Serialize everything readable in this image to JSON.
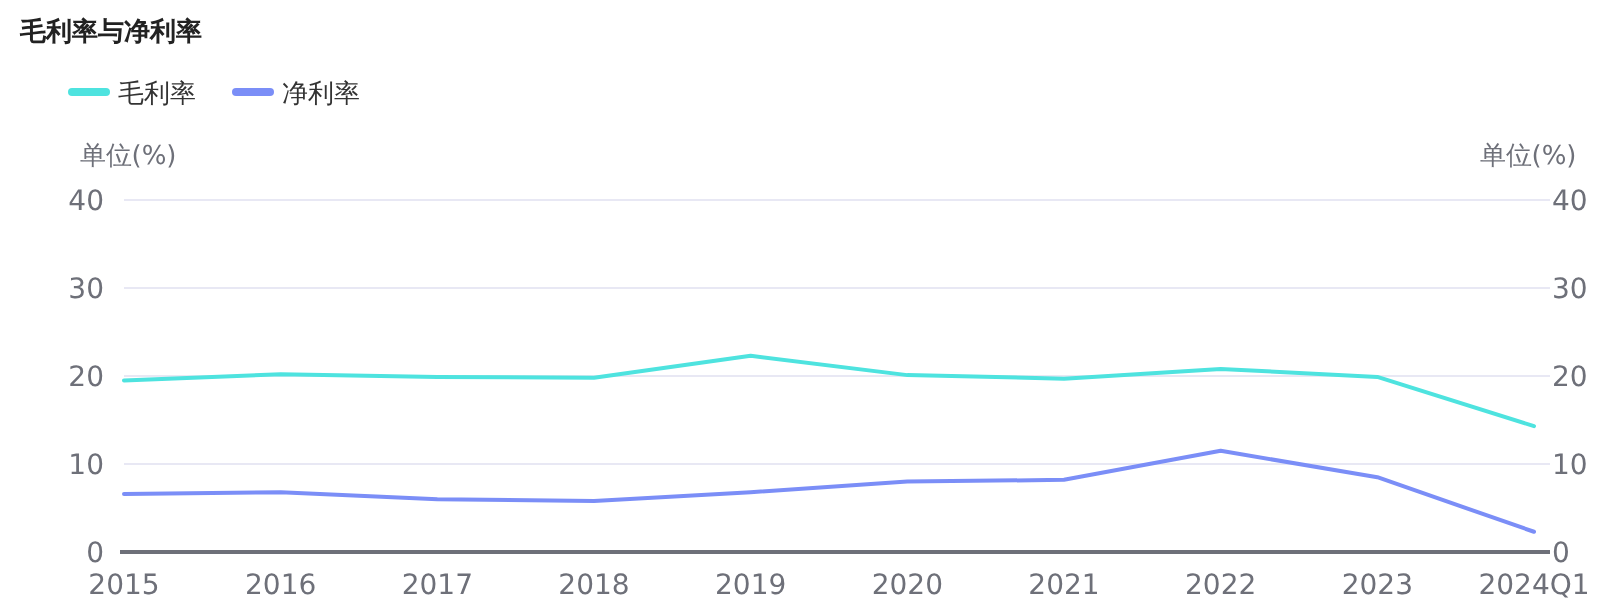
{
  "chart_data": {
    "type": "line",
    "title": "毛利率与净利率",
    "ylabel": "单位(%)",
    "y2label": "单位(%)",
    "categories": [
      "2015",
      "2016",
      "2017",
      "2018",
      "2019",
      "2020",
      "2021",
      "2022",
      "2023",
      "2024Q1"
    ],
    "series": [
      {
        "name": "毛利率",
        "color": "#4ee3df",
        "values": [
          19.5,
          20.2,
          19.9,
          19.8,
          22.3,
          20.1,
          19.7,
          20.8,
          19.9,
          14.3
        ]
      },
      {
        "name": "净利率",
        "color": "#7b8ef7",
        "values": [
          6.6,
          6.8,
          6.0,
          5.8,
          6.8,
          8.0,
          8.2,
          11.5,
          8.5,
          2.3
        ]
      }
    ],
    "ylim": [
      0,
      40
    ],
    "yticks": [
      0,
      10,
      20,
      30,
      40
    ],
    "y2lim": [
      0,
      40
    ],
    "y2ticks": [
      0,
      10,
      20,
      30,
      40
    ],
    "grid": "y",
    "legend": "top left",
    "marker": "none",
    "line_style": "solid"
  }
}
